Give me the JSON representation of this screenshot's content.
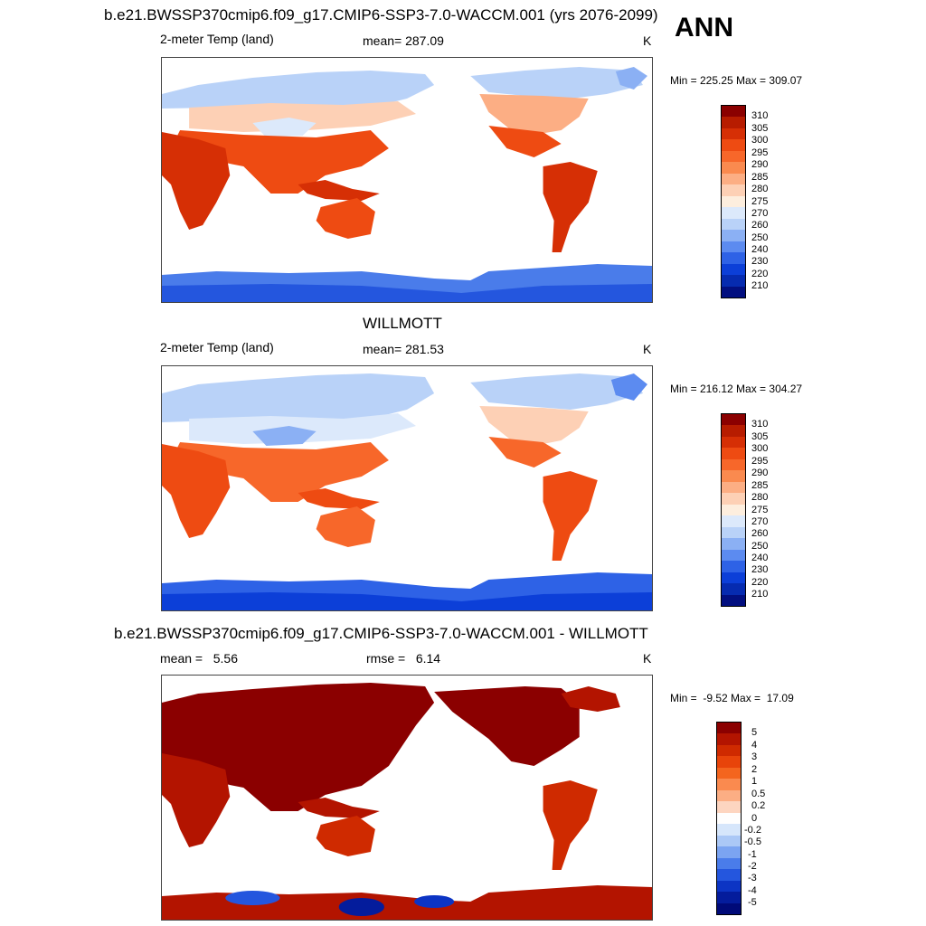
{
  "season": "ANN",
  "panels": [
    {
      "title": "b.e21.BWSSP370cmip6.f09_g17.CMIP6-SSP3-7.0-WACCM.001 (yrs 2076-2099)",
      "left_label": "2-meter Temp (land)",
      "center_label": "mean= 287.09",
      "units": "K",
      "minmax": "Min = 225.25 Max = 309.07",
      "palette": "temp",
      "colorbar_labels": [
        "310",
        "305",
        "300",
        "295",
        "290",
        "285",
        "280",
        "275",
        "270",
        "260",
        "250",
        "240",
        "230",
        "220",
        "210"
      ],
      "colorbar_colors": [
        "#8b0000",
        "#b71c00",
        "#d62f05",
        "#ee4b12",
        "#f7672a",
        "#fa8a4f",
        "#fcae84",
        "#fdd0b5",
        "#fdeede",
        "#dce9fb",
        "#b9d2f8",
        "#8bb0f4",
        "#5c8bf0",
        "#2e62e6",
        "#0c3fd8",
        "#062bb0",
        "#020f80"
      ]
    },
    {
      "title": "WILLMOTT",
      "left_label": "2-meter Temp (land)",
      "center_label": "mean= 281.53",
      "units": "K",
      "minmax": "Min = 216.12 Max = 304.27",
      "palette": "temp",
      "colorbar_labels": [
        "310",
        "305",
        "300",
        "295",
        "290",
        "285",
        "280",
        "275",
        "270",
        "260",
        "250",
        "240",
        "230",
        "220",
        "210"
      ],
      "colorbar_colors": [
        "#8b0000",
        "#b71c00",
        "#d62f05",
        "#ee4b12",
        "#f7672a",
        "#fa8a4f",
        "#fcae84",
        "#fdd0b5",
        "#fdeede",
        "#dce9fb",
        "#b9d2f8",
        "#8bb0f4",
        "#5c8bf0",
        "#2e62e6",
        "#0c3fd8",
        "#062bb0",
        "#020f80"
      ]
    },
    {
      "title": "b.e21.BWSSP370cmip6.f09_g17.CMIP6-SSP3-7.0-WACCM.001 - WILLMOTT",
      "left_label": "mean =   5.56",
      "center_label": "rmse =   6.14",
      "units": "K",
      "minmax": "Min =  -9.52 Max =  17.09",
      "palette": "diff",
      "colorbar_labels": [
        "5",
        "4",
        "3",
        "2",
        "1",
        "0.5",
        "0.2",
        "0",
        "-0.2",
        "-0.5",
        "-1",
        "-2",
        "-3",
        "-4",
        "-5"
      ],
      "colorbar_colors": [
        "#8b0000",
        "#b31400",
        "#cf2a00",
        "#e8440a",
        "#f4651e",
        "#fa8a4f",
        "#fcae84",
        "#fdd5c0",
        "#fefefe",
        "#d6e6fb",
        "#abc8f6",
        "#7ba4f1",
        "#4a7cea",
        "#2456de",
        "#0c34c4",
        "#041c9c",
        "#000a78"
      ]
    }
  ]
}
